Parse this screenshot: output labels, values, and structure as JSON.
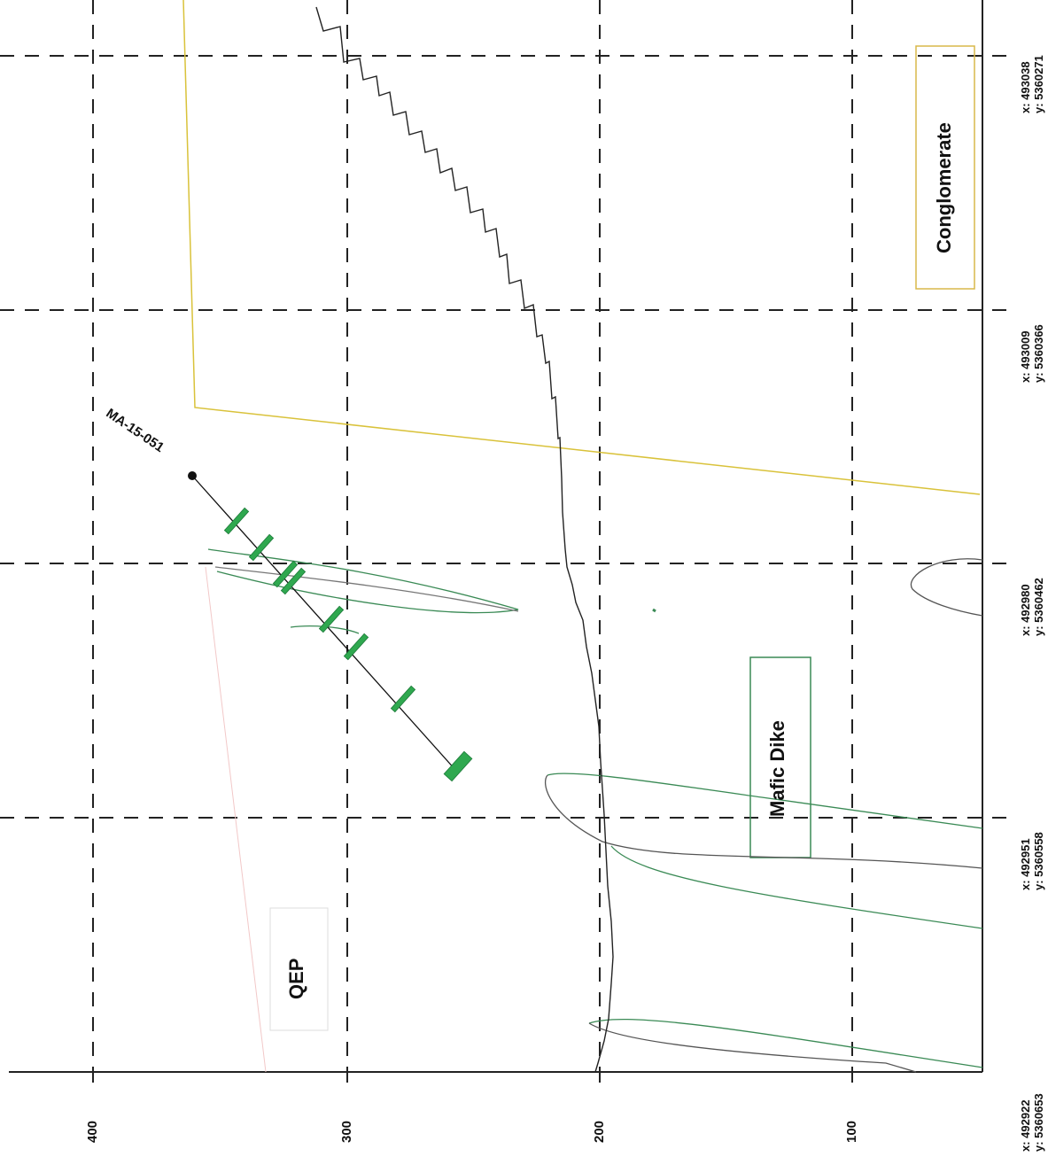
{
  "section": {
    "elevation_labels": [
      "400",
      "300",
      "200",
      "100"
    ],
    "stations": [
      {
        "x": "x: 492922",
        "y": "y: 5360653"
      },
      {
        "x": "x: 492951",
        "y": "y: 5360558"
      },
      {
        "x": "x: 492980",
        "y": "y: 5360462"
      },
      {
        "x": "x: 493009",
        "y": "y: 5360366"
      },
      {
        "x": "x: 493038",
        "y": "y: 5360271"
      }
    ],
    "units": {
      "conglomerate": "Conglomerate",
      "mafic_dike": "Mafic Dike",
      "qep": "QEP"
    },
    "drillhole": {
      "name": "MA-15-051",
      "intercept_count": 8
    },
    "colors": {
      "grid": "#222222",
      "topography": "#222222",
      "drillhole": "#111111",
      "intercepts": "#2fa84f",
      "dike_outline": "#3a8a55",
      "contact": "#d9c23a",
      "conglomerate_box": "#d9b84a",
      "mafic_box": "#3a8a55"
    }
  }
}
